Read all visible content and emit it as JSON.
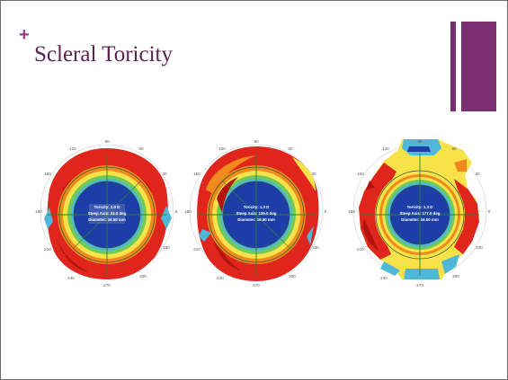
{
  "slide": {
    "plus": "+",
    "title": "Scleral Toricity",
    "accent_color": "#7a2f73",
    "plus_color": "#9b3a8c",
    "title_color": "#5b2352"
  },
  "maps": [
    {
      "label_lines": [
        "Toricity: 2.0 D",
        "Steep Axis: 33.0 deg",
        "Diameter: 16.50 mm"
      ]
    },
    {
      "label_lines": [
        "Toricity: 1.3 D",
        "Steep Axis: 136.0 deg",
        "Diameter: 16.50 mm"
      ]
    },
    {
      "label_lines": [
        "Toricity: 1.3 D",
        "Steep Axis: 177.0 deg",
        "Diameter: 16.50 mm"
      ]
    }
  ],
  "angle_labels": [
    "90",
    "60",
    "30",
    "0",
    "330",
    "300",
    "270",
    "240",
    "210",
    "180",
    "150",
    "120"
  ],
  "colors": {
    "red": "#e0261c",
    "dark_red": "#b5130e",
    "orange": "#f18a1d",
    "yellow": "#f7e24a",
    "green": "#6fca5a",
    "cyan": "#4fb8d8",
    "blue": "#1d3ea6",
    "navy": "#0d1f72"
  }
}
